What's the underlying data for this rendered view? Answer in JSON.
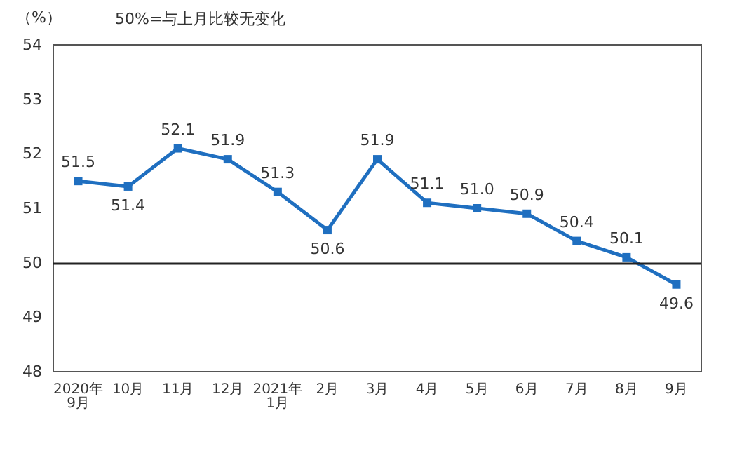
{
  "chart_data": {
    "type": "line",
    "ylabel": "（%）",
    "annotations": [
      "50%=与上月比较无变化"
    ],
    "categories": [
      "2020年\n9月",
      "10月",
      "11月",
      "12月",
      "2021年\n1月",
      "2月",
      "3月",
      "4月",
      "5月",
      "6月",
      "7月",
      "8月",
      "9月"
    ],
    "series": [
      {
        "color": "#1f6fc0",
        "values": [
          51.5,
          51.4,
          52.1,
          51.9,
          51.3,
          50.6,
          51.9,
          51.1,
          51.0,
          50.9,
          50.4,
          50.1,
          49.6
        ],
        "value_labels": [
          "51.5",
          "51.4",
          "52.1",
          "51.9",
          "51.3",
          "50.6",
          "51.9",
          "51.1",
          "51.0",
          "50.9",
          "50.4",
          "50.1",
          "49.6"
        ]
      }
    ],
    "ylim": [
      48,
      54
    ],
    "yticks": [
      48,
      49,
      50,
      51,
      52,
      53,
      54
    ],
    "ref_lines": [
      {
        "axis": "y",
        "value": 50,
        "color": "#222222"
      }
    ],
    "grid": false,
    "marker": "square",
    "line_style": "solid"
  }
}
